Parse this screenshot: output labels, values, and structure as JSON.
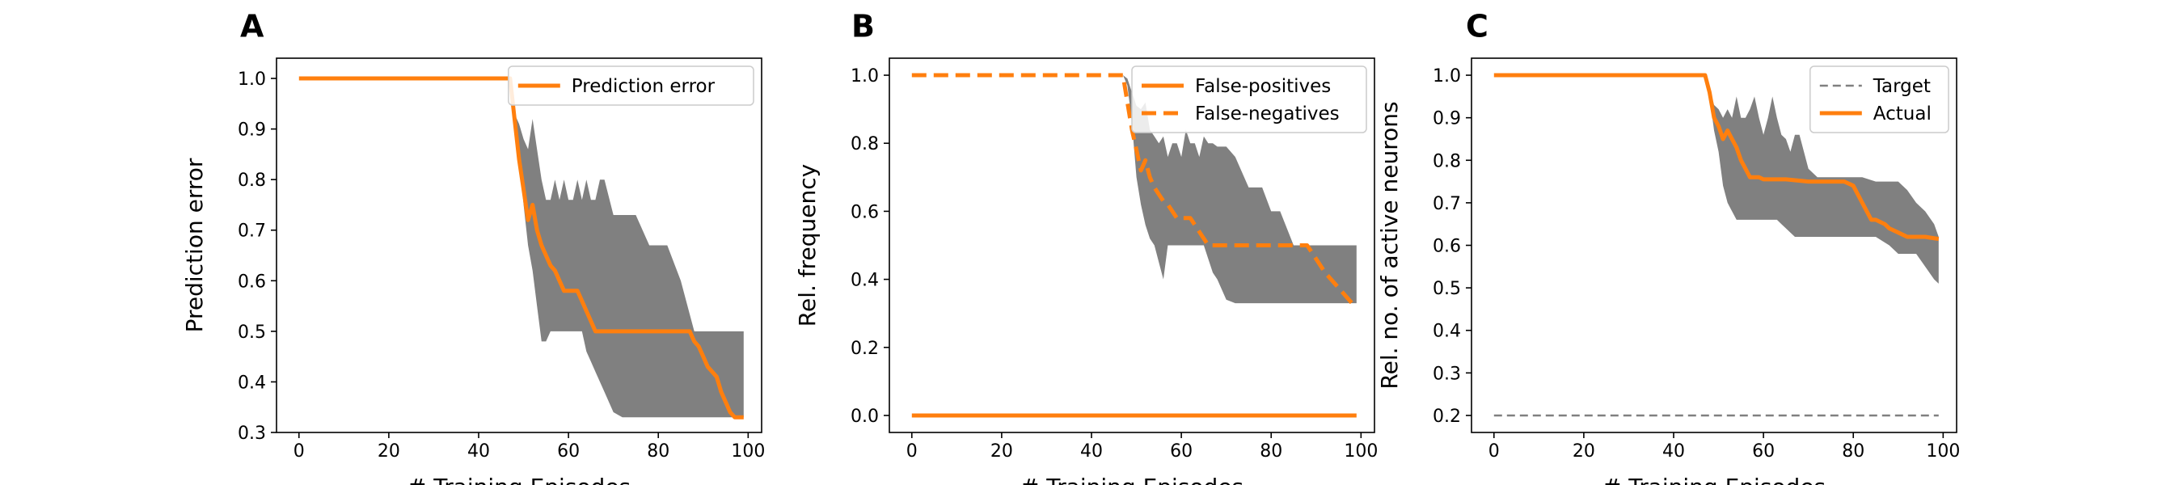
{
  "colors": {
    "line": "#ff7f0e",
    "band": "#808080",
    "target": "#808080",
    "axis": "#000000"
  },
  "chart_data": [
    {
      "panel_label": "A",
      "type": "line",
      "xlabel": "# Training Episodes",
      "ylabel": "Prediction error",
      "xlim": [
        -5,
        103
      ],
      "ylim": [
        0.3,
        1.04
      ],
      "xticks": [
        0,
        20,
        40,
        60,
        80,
        100
      ],
      "yticks": [
        0.3,
        0.4,
        0.5,
        0.6,
        0.7,
        0.8,
        0.9,
        1.0
      ],
      "ytick_labels": [
        "0.3",
        "0.4",
        "0.5",
        "0.6",
        "0.7",
        "0.8",
        "0.9",
        "1.0"
      ],
      "legend_position": "upper-right",
      "band": {
        "x": [
          0,
          47,
          48,
          49,
          50,
          51,
          52,
          53,
          54,
          55,
          56,
          57,
          58,
          59,
          60,
          61,
          62,
          63,
          64,
          65,
          66,
          67,
          68,
          70,
          72,
          75,
          78,
          80,
          82,
          85,
          88,
          90,
          92,
          95,
          97,
          99
        ],
        "upper": [
          1.0,
          1.0,
          0.93,
          0.91,
          0.88,
          0.86,
          0.92,
          0.86,
          0.8,
          0.76,
          0.76,
          0.8,
          0.76,
          0.8,
          0.76,
          0.76,
          0.8,
          0.76,
          0.8,
          0.76,
          0.76,
          0.8,
          0.8,
          0.73,
          0.73,
          0.73,
          0.67,
          0.67,
          0.67,
          0.6,
          0.5,
          0.5,
          0.5,
          0.5,
          0.5,
          0.5
        ],
        "lower": [
          1.0,
          1.0,
          0.91,
          0.85,
          0.75,
          0.67,
          0.62,
          0.55,
          0.48,
          0.48,
          0.5,
          0.5,
          0.5,
          0.5,
          0.5,
          0.5,
          0.5,
          0.5,
          0.46,
          0.44,
          0.42,
          0.4,
          0.38,
          0.34,
          0.33,
          0.33,
          0.33,
          0.33,
          0.33,
          0.33,
          0.33,
          0.33,
          0.33,
          0.33,
          0.33,
          0.33
        ]
      },
      "series": [
        {
          "name": "Prediction error",
          "style": "solid",
          "x": [
            0,
            47,
            48,
            49,
            50,
            51,
            52,
            53,
            54,
            55,
            56,
            57,
            58,
            59,
            60,
            61,
            62,
            63,
            64,
            65,
            66,
            67,
            68,
            70,
            75,
            80,
            85,
            86,
            87,
            88,
            89,
            90,
            91,
            92,
            93,
            94,
            95,
            96,
            97,
            99
          ],
          "y": [
            1.0,
            1.0,
            0.92,
            0.84,
            0.78,
            0.72,
            0.75,
            0.7,
            0.67,
            0.65,
            0.63,
            0.62,
            0.6,
            0.58,
            0.58,
            0.58,
            0.58,
            0.56,
            0.54,
            0.52,
            0.5,
            0.5,
            0.5,
            0.5,
            0.5,
            0.5,
            0.5,
            0.5,
            0.5,
            0.48,
            0.47,
            0.45,
            0.43,
            0.42,
            0.41,
            0.38,
            0.36,
            0.34,
            0.33,
            0.33
          ]
        }
      ]
    },
    {
      "panel_label": "B",
      "type": "line",
      "xlabel": "# Training Episodes",
      "ylabel": "Rel. frequency",
      "xlim": [
        -5,
        103
      ],
      "ylim": [
        -0.05,
        1.05
      ],
      "xticks": [
        0,
        20,
        40,
        60,
        80,
        100
      ],
      "yticks": [
        0.0,
        0.2,
        0.4,
        0.6,
        0.8,
        1.0
      ],
      "ytick_labels": [
        "0.0",
        "0.2",
        "0.4",
        "0.6",
        "0.8",
        "1.0"
      ],
      "legend_position": "upper-right",
      "band": {
        "x": [
          0,
          47,
          48,
          49,
          50,
          51,
          52,
          53,
          54,
          55,
          56,
          57,
          58,
          59,
          60,
          61,
          62,
          63,
          64,
          65,
          66,
          67,
          68,
          70,
          72,
          75,
          78,
          80,
          82,
          85,
          88,
          90,
          92,
          95,
          97,
          99
        ],
        "upper": [
          1.0,
          1.0,
          0.99,
          0.95,
          0.91,
          0.9,
          0.92,
          0.84,
          0.82,
          0.8,
          0.82,
          0.76,
          0.8,
          0.8,
          0.76,
          0.84,
          0.8,
          0.8,
          0.76,
          0.82,
          0.8,
          0.8,
          0.79,
          0.79,
          0.76,
          0.67,
          0.67,
          0.6,
          0.6,
          0.5,
          0.5,
          0.5,
          0.5,
          0.5,
          0.5,
          0.5
        ],
        "lower": [
          1.0,
          1.0,
          0.97,
          0.86,
          0.7,
          0.62,
          0.56,
          0.52,
          0.5,
          0.45,
          0.4,
          0.5,
          0.5,
          0.5,
          0.5,
          0.5,
          0.5,
          0.5,
          0.5,
          0.5,
          0.46,
          0.42,
          0.4,
          0.34,
          0.33,
          0.33,
          0.33,
          0.33,
          0.33,
          0.33,
          0.33,
          0.33,
          0.33,
          0.33,
          0.33,
          0.33
        ]
      },
      "series": [
        {
          "name": "False-positives",
          "style": "solid",
          "x": [
            0,
            99
          ],
          "y": [
            0.0,
            0.0
          ]
        },
        {
          "name": "False-negatives",
          "style": "dashed",
          "x": [
            0,
            47,
            48,
            49,
            50,
            51,
            52,
            53,
            54,
            55,
            56,
            57,
            58,
            59,
            60,
            61,
            62,
            63,
            64,
            65,
            66,
            67,
            68,
            70,
            75,
            80,
            85,
            88,
            90,
            92,
            94,
            96,
            98,
            99
          ],
          "y": [
            1.0,
            1.0,
            0.92,
            0.84,
            0.78,
            0.72,
            0.75,
            0.7,
            0.67,
            0.65,
            0.63,
            0.62,
            0.6,
            0.58,
            0.58,
            0.58,
            0.58,
            0.56,
            0.54,
            0.52,
            0.5,
            0.5,
            0.5,
            0.5,
            0.5,
            0.5,
            0.5,
            0.5,
            0.46,
            0.42,
            0.39,
            0.36,
            0.33,
            0.33
          ]
        }
      ]
    },
    {
      "panel_label": "C",
      "type": "line",
      "xlabel": "# Training Episodes",
      "ylabel": "Rel. no. of active neurons",
      "xlim": [
        -5,
        103
      ],
      "ylim": [
        0.16,
        1.04
      ],
      "xticks": [
        0,
        20,
        40,
        60,
        80,
        100
      ],
      "yticks": [
        0.2,
        0.3,
        0.4,
        0.5,
        0.6,
        0.7,
        0.8,
        0.9,
        1.0
      ],
      "ytick_labels": [
        "0.2",
        "0.3",
        "0.4",
        "0.5",
        "0.6",
        "0.7",
        "0.8",
        "0.9",
        "1.0"
      ],
      "legend_position": "upper-right",
      "band": {
        "x": [
          0,
          47,
          48,
          49,
          50,
          51,
          52,
          53,
          54,
          55,
          56,
          57,
          58,
          59,
          60,
          61,
          62,
          63,
          64,
          65,
          66,
          67,
          68,
          70,
          72,
          75,
          78,
          80,
          82,
          85,
          88,
          90,
          92,
          94,
          96,
          98,
          99
        ],
        "upper": [
          1.0,
          1.0,
          0.97,
          0.93,
          0.92,
          0.9,
          0.92,
          0.9,
          0.95,
          0.9,
          0.9,
          0.92,
          0.95,
          0.9,
          0.86,
          0.9,
          0.95,
          0.9,
          0.86,
          0.85,
          0.82,
          0.86,
          0.86,
          0.78,
          0.76,
          0.76,
          0.76,
          0.76,
          0.76,
          0.75,
          0.75,
          0.75,
          0.73,
          0.7,
          0.68,
          0.65,
          0.62
        ],
        "lower": [
          1.0,
          1.0,
          0.95,
          0.87,
          0.82,
          0.74,
          0.7,
          0.68,
          0.66,
          0.66,
          0.66,
          0.66,
          0.66,
          0.66,
          0.66,
          0.66,
          0.66,
          0.66,
          0.65,
          0.64,
          0.63,
          0.62,
          0.62,
          0.62,
          0.62,
          0.62,
          0.62,
          0.62,
          0.62,
          0.62,
          0.6,
          0.58,
          0.58,
          0.58,
          0.55,
          0.52,
          0.51
        ]
      },
      "series": [
        {
          "name": "Target",
          "style": "thin-dashed",
          "x": [
            0,
            99
          ],
          "y": [
            0.2,
            0.2
          ]
        },
        {
          "name": "Actual",
          "style": "solid",
          "x": [
            0,
            47,
            48,
            49,
            50,
            51,
            52,
            53,
            54,
            55,
            56,
            57,
            58,
            59,
            60,
            62,
            65,
            70,
            75,
            78,
            80,
            81,
            82,
            83,
            84,
            85,
            86,
            87,
            88,
            90,
            92,
            94,
            96,
            99
          ],
          "y": [
            1.0,
            1.0,
            0.96,
            0.9,
            0.88,
            0.85,
            0.87,
            0.85,
            0.83,
            0.8,
            0.78,
            0.76,
            0.76,
            0.76,
            0.755,
            0.755,
            0.755,
            0.75,
            0.75,
            0.75,
            0.74,
            0.72,
            0.7,
            0.68,
            0.66,
            0.66,
            0.655,
            0.65,
            0.64,
            0.63,
            0.62,
            0.62,
            0.62,
            0.615
          ]
        }
      ]
    }
  ]
}
